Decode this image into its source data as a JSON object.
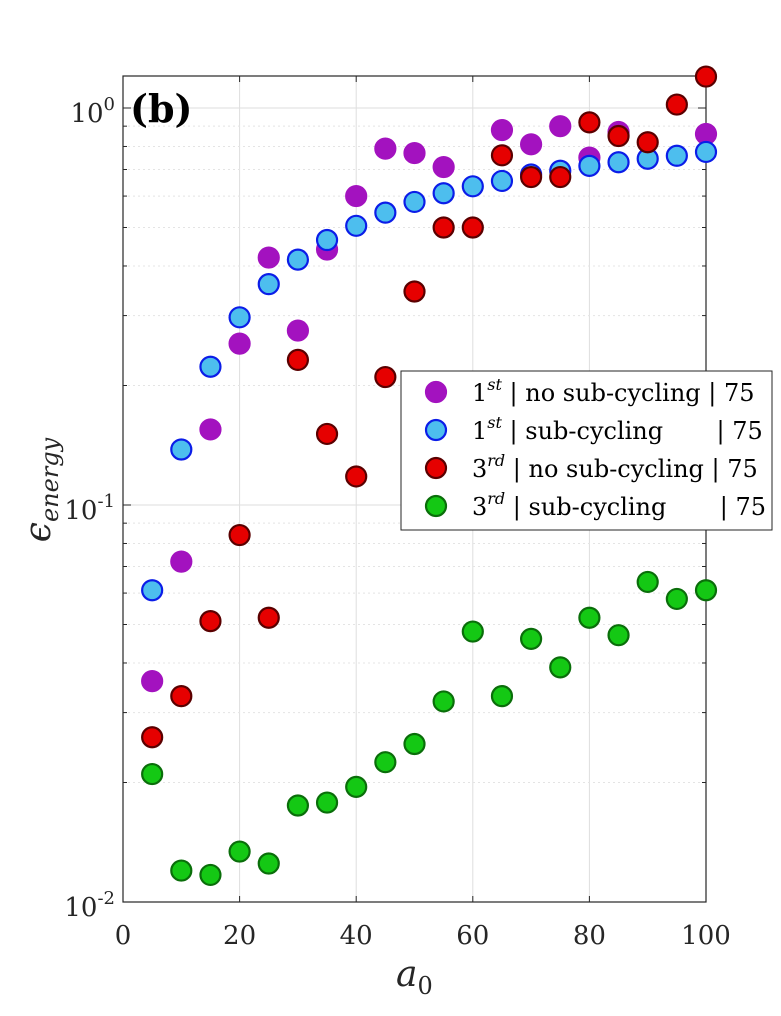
{
  "chart_data": {
    "type": "scatter",
    "panel_label": "(b)",
    "x_label_base": "a",
    "x_label_sub": "0",
    "y_label_base": "ϵ",
    "y_label_sub": "energy",
    "x_scale": "linear",
    "y_scale": "log",
    "xlim": [
      0,
      100
    ],
    "ylim": [
      0.01,
      1.2
    ],
    "x_ticks": [
      0,
      20,
      40,
      60,
      80,
      100
    ],
    "x_tick_labels": [
      "0",
      "20",
      "40",
      "60",
      "80",
      "100"
    ],
    "y_ticks": [
      0.01,
      0.1,
      1
    ],
    "y_tick_labels": [
      {
        "base": "10",
        "exp": "-2"
      },
      {
        "base": "10",
        "exp": "-1"
      },
      {
        "base": "10",
        "exp": "0"
      }
    ],
    "grid": true,
    "legend_position": "right",
    "x": [
      5,
      10,
      15,
      20,
      25,
      30,
      35,
      40,
      45,
      50,
      55,
      60,
      65,
      70,
      75,
      80,
      85,
      90,
      95,
      100
    ],
    "series": [
      {
        "name": "1st | no sub-cycling | 75",
        "label_main": "1",
        "label_sup": "st",
        "label_rest": "| no sub-cycling | 75",
        "fill": "#a312bf",
        "edge": "#a312bf",
        "x": [
          5,
          10,
          15,
          20,
          25,
          30,
          35,
          40,
          45,
          50,
          55,
          65,
          70,
          75,
          80,
          85,
          100
        ],
        "values": [
          0.036,
          0.072,
          0.155,
          0.255,
          0.42,
          0.275,
          0.44,
          0.6,
          0.79,
          0.77,
          0.71,
          0.88,
          0.81,
          0.9,
          0.75,
          0.87,
          0.86
        ]
      },
      {
        "name": "1st | sub-cycling | 75",
        "label_main": "1",
        "label_sup": "st",
        "label_rest": "| sub-cycling       | 75",
        "fill": "#4dbeee",
        "edge": "#0b1de8",
        "x": [
          5,
          10,
          15,
          20,
          25,
          30,
          35,
          40,
          45,
          50,
          55,
          60,
          65,
          70,
          75,
          80,
          85,
          90,
          95,
          100
        ],
        "values": [
          0.061,
          0.138,
          0.223,
          0.297,
          0.36,
          0.415,
          0.465,
          0.505,
          0.545,
          0.58,
          0.61,
          0.635,
          0.655,
          0.68,
          0.695,
          0.715,
          0.73,
          0.745,
          0.758,
          0.775
        ]
      },
      {
        "name": "3rd | no sub-cycling | 75",
        "label_main": "3",
        "label_sup": "rd",
        "label_rest": "| no sub-cycling | 75",
        "fill": "#e60000",
        "edge": "#5a0000",
        "x": [
          5,
          10,
          15,
          20,
          25,
          30,
          35,
          40,
          45,
          50,
          55,
          60,
          65,
          70,
          75,
          80,
          85,
          90,
          95,
          100
        ],
        "values": [
          0.026,
          0.033,
          0.051,
          0.084,
          0.052,
          0.232,
          0.151,
          0.118,
          0.21,
          0.345,
          0.5,
          0.5,
          0.76,
          0.67,
          0.67,
          0.92,
          0.85,
          0.82,
          1.02,
          1.2
        ]
      },
      {
        "name": "3rd | sub-cycling | 75",
        "label_main": "3",
        "label_sup": "rd",
        "label_rest": "| sub-cycling       | 75",
        "fill": "#14c814",
        "edge": "#0a6e0a",
        "x": [
          5,
          10,
          15,
          20,
          25,
          30,
          35,
          40,
          45,
          50,
          55,
          60,
          65,
          70,
          75,
          80,
          85,
          90,
          95,
          100
        ],
        "values": [
          0.021,
          0.012,
          0.0117,
          0.0134,
          0.0125,
          0.0175,
          0.0178,
          0.0195,
          0.0225,
          0.025,
          0.032,
          0.048,
          0.033,
          0.046,
          0.039,
          0.052,
          0.047,
          0.064,
          0.058,
          0.061
        ]
      }
    ]
  }
}
